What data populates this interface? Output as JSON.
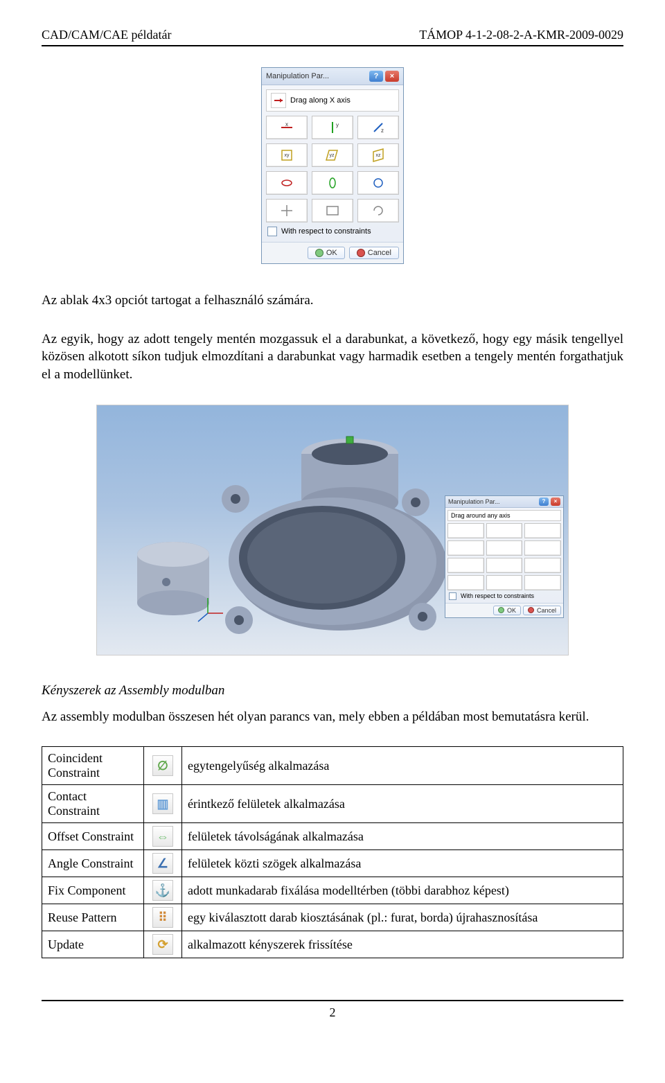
{
  "header": {
    "left": "CAD/CAM/CAE példatár",
    "right": "TÁMOP 4-1-2-08-2-A-KMR-2009-0029"
  },
  "dialog": {
    "title": "Manipulation Par...",
    "hint": "Drag along X axis",
    "hint_small": "Drag around any axis",
    "checkbox": "With respect to constraints",
    "ok": "OK",
    "cancel": "Cancel",
    "labels": {
      "r1c1": "x",
      "r1c2": "y",
      "r1c3": "z",
      "r2c1": "xy",
      "r2c2": "yz",
      "r2c3": "xz",
      "r3c1": "↻x",
      "r3c2": "↻y",
      "r3c3": "↻z",
      "r4c1": "⊕",
      "r4c2": "↺",
      "r4c3": "⇆"
    }
  },
  "para1": "Az ablak 4x3 opciót tartogat a felhasználó számára.",
  "para2": "Az egyik, hogy az adott tengely mentén mozgassuk el a darabunkat, a következő, hogy egy másik tengellyel közösen alkotott síkon tudjuk elmozdítani a darabunkat vagy harmadik esetben a tengely mentén forgathatjuk el a modellünket.",
  "section_title": "Kényszerek az Assembly modulban",
  "para3": "Az assembly modulban összesen hét olyan parancs van, mely ebben a példában most bemutatásra kerül.",
  "commands": [
    {
      "name": "Coincident Constraint",
      "icon_color": "#5fa84a",
      "glyph": "∅",
      "desc": "egytengelyűség alkalmazása"
    },
    {
      "name": "Contact Constraint",
      "icon_color": "#6aa0d8",
      "glyph": "▥",
      "desc": "érintkező felületek alkalmazása"
    },
    {
      "name": "Offset Constraint",
      "icon_color": "#6fbf6f",
      "glyph": "⇔",
      "desc": "felületek távolságának alkalmazása"
    },
    {
      "name": "Angle Constraint",
      "icon_color": "#3a6fb0",
      "glyph": "∠",
      "desc": "felületek közti szögek alkalmazása"
    },
    {
      "name": "Fix Component",
      "icon_color": "#3a6fb0",
      "glyph": "⚓",
      "desc": "adott munkadarab fixálása modelltérben (többi darabhoz képest)"
    },
    {
      "name": "Reuse Pattern",
      "icon_color": "#d18a3a",
      "glyph": "⠿",
      "desc": "egy kiválasztott darab kiosztásának (pl.: furat, borda) újrahasznosítása"
    },
    {
      "name": "Update",
      "icon_color": "#d4a030",
      "glyph": "⟳",
      "desc": "alkalmazott kényszerek frissítése"
    }
  ],
  "footer": {
    "page": "2"
  },
  "figure": {
    "housing_color": "#9ba7bd",
    "housing_dark": "#6b788f",
    "housing_light": "#c5cddb",
    "bore_dark": "#4a5568",
    "piston_color": "#a9b3c5"
  }
}
